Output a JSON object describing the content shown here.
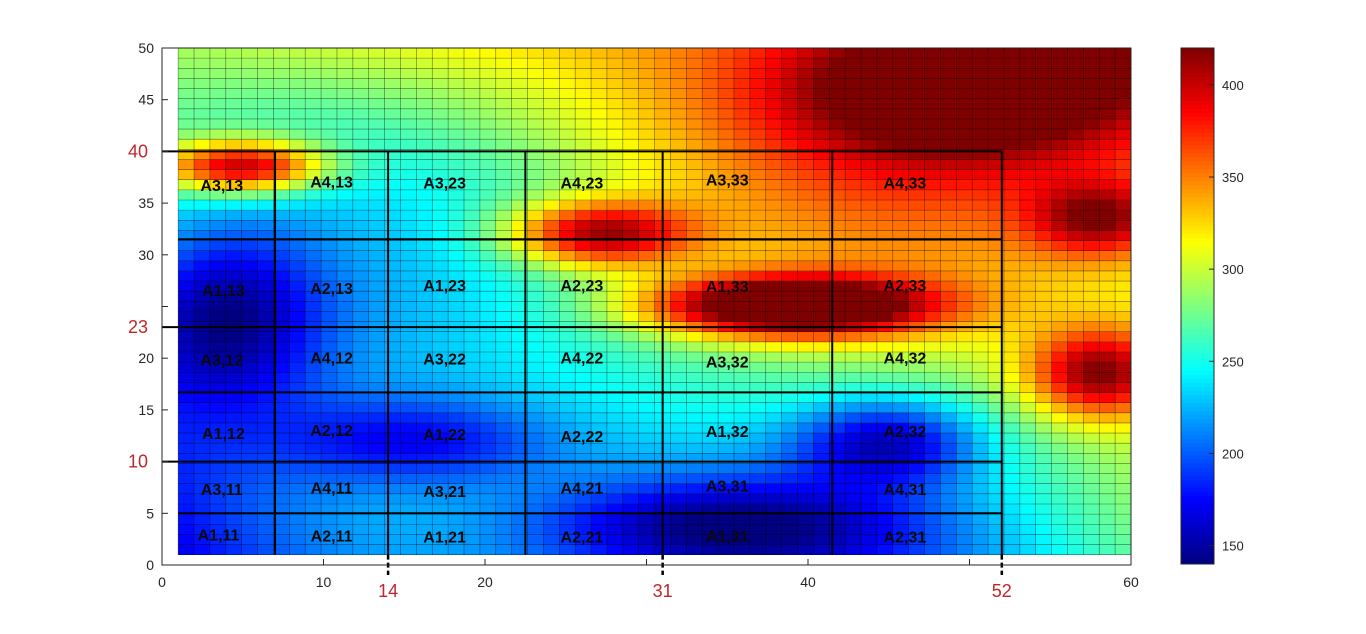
{
  "chart_data": {
    "type": "heatmap",
    "xlim": [
      0,
      60
    ],
    "ylim": [
      0,
      50
    ],
    "x_ticks": [
      0,
      10,
      20,
      30,
      40,
      50,
      60
    ],
    "x_tick_labels": [
      "0",
      "10",
      "20",
      "",
      "40",
      "",
      "60"
    ],
    "y_ticks": [
      0,
      5,
      10,
      15,
      20,
      25,
      30,
      35,
      40,
      45,
      50
    ],
    "y_tick_labels": [
      "0",
      "5",
      "",
      "15",
      "20",
      "",
      "30",
      "35",
      "",
      "45",
      "50"
    ],
    "grid_x_range": [
      1,
      60
    ],
    "grid_y_range": [
      1,
      50
    ],
    "grid_cols": 60,
    "grid_rows": 50,
    "colorbar": {
      "min": 140,
      "max": 420,
      "ticks": [
        150,
        200,
        250,
        300,
        350,
        400
      ],
      "tick_labels": [
        "150",
        "200",
        "250",
        "300",
        "350",
        "400"
      ],
      "colormap": "jet"
    },
    "red_x_markers": [
      {
        "value": 14,
        "label": "14"
      },
      {
        "value": 31,
        "label": "31"
      },
      {
        "value": 52,
        "label": "52"
      }
    ],
    "red_y_markers": [
      {
        "value": 40,
        "label": "40"
      },
      {
        "value": 23,
        "label": "23"
      },
      {
        "value": 10,
        "label": "10"
      }
    ],
    "thick_vertical_lines": [
      7,
      14,
      22.5,
      31,
      41.5,
      52
    ],
    "thick_horizontal_lines": [
      5,
      10,
      16.7,
      23,
      31.5,
      40
    ],
    "region_labels": [
      {
        "label": "A1,11",
        "x": 3.5,
        "y": 2.8
      },
      {
        "label": "A2,11",
        "x": 10.5,
        "y": 2.7
      },
      {
        "label": "A1,21",
        "x": 17.5,
        "y": 2.6
      },
      {
        "label": "A2,21",
        "x": 26.0,
        "y": 2.6
      },
      {
        "label": "A1,31",
        "x": 35.0,
        "y": 2.7
      },
      {
        "label": "A2,31",
        "x": 46.0,
        "y": 2.6
      },
      {
        "label": "A3,11",
        "x": 3.7,
        "y": 7.2
      },
      {
        "label": "A4,11",
        "x": 10.5,
        "y": 7.3
      },
      {
        "label": "A3,21",
        "x": 17.5,
        "y": 7.0
      },
      {
        "label": "A4,21",
        "x": 26.0,
        "y": 7.3
      },
      {
        "label": "A3,31",
        "x": 35.0,
        "y": 7.5
      },
      {
        "label": "A4,31",
        "x": 46.0,
        "y": 7.2
      },
      {
        "label": "A1,12",
        "x": 3.8,
        "y": 12.6
      },
      {
        "label": "A2,12",
        "x": 10.5,
        "y": 12.9
      },
      {
        "label": "A1,22",
        "x": 17.5,
        "y": 12.5
      },
      {
        "label": "A2,22",
        "x": 26.0,
        "y": 12.3
      },
      {
        "label": "A1,32",
        "x": 35.0,
        "y": 12.8
      },
      {
        "label": "A2,32",
        "x": 46.0,
        "y": 12.8
      },
      {
        "label": "A3,12",
        "x": 3.7,
        "y": 19.7
      },
      {
        "label": "A4,12",
        "x": 10.5,
        "y": 19.9
      },
      {
        "label": "A3,22",
        "x": 17.5,
        "y": 19.8
      },
      {
        "label": "A4,22",
        "x": 26.0,
        "y": 19.9
      },
      {
        "label": "A3,32",
        "x": 35.0,
        "y": 19.5
      },
      {
        "label": "A4,32",
        "x": 46.0,
        "y": 19.9
      },
      {
        "label": "A1,13",
        "x": 3.8,
        "y": 26.4
      },
      {
        "label": "A2,13",
        "x": 10.5,
        "y": 26.6
      },
      {
        "label": "A1,23",
        "x": 17.5,
        "y": 26.9
      },
      {
        "label": "A2,23",
        "x": 26.0,
        "y": 26.9
      },
      {
        "label": "A1,33",
        "x": 35.0,
        "y": 26.8
      },
      {
        "label": "A2,33",
        "x": 46.0,
        "y": 26.9
      },
      {
        "label": "A3,13",
        "x": 3.7,
        "y": 36.6
      },
      {
        "label": "A4,13",
        "x": 10.5,
        "y": 36.9
      },
      {
        "label": "A3,23",
        "x": 17.5,
        "y": 36.8
      },
      {
        "label": "A4,23",
        "x": 26.0,
        "y": 36.8
      },
      {
        "label": "A3,33",
        "x": 35.0,
        "y": 37.1
      },
      {
        "label": "A4,33",
        "x": 46.0,
        "y": 36.8
      }
    ],
    "field_hotspots": [
      {
        "x": 5,
        "y": 38.5,
        "amp": 150,
        "sx": 3.5,
        "sy": 1.8
      },
      {
        "x": 27,
        "y": 32,
        "amp": 130,
        "sx": 4,
        "sy": 2.2
      },
      {
        "x": 39,
        "y": 25,
        "amp": 190,
        "sx": 6,
        "sy": 2
      },
      {
        "x": 58,
        "y": 18.5,
        "amp": 120,
        "sx": 3,
        "sy": 3
      },
      {
        "x": 58,
        "y": 33.5,
        "amp": 90,
        "sx": 3,
        "sy": 2.5
      },
      {
        "x": 50,
        "y": 46,
        "amp": 110,
        "sx": 8,
        "sy": 5
      },
      {
        "x": 4,
        "y": 24,
        "amp": -80,
        "sx": 4,
        "sy": 6
      },
      {
        "x": 16,
        "y": 12,
        "amp": -60,
        "sx": 6,
        "sy": 3
      },
      {
        "x": 45,
        "y": 12,
        "amp": -90,
        "sx": 4,
        "sy": 3
      },
      {
        "x": 35,
        "y": 4,
        "amp": -70,
        "sx": 8,
        "sy": 3
      }
    ]
  }
}
